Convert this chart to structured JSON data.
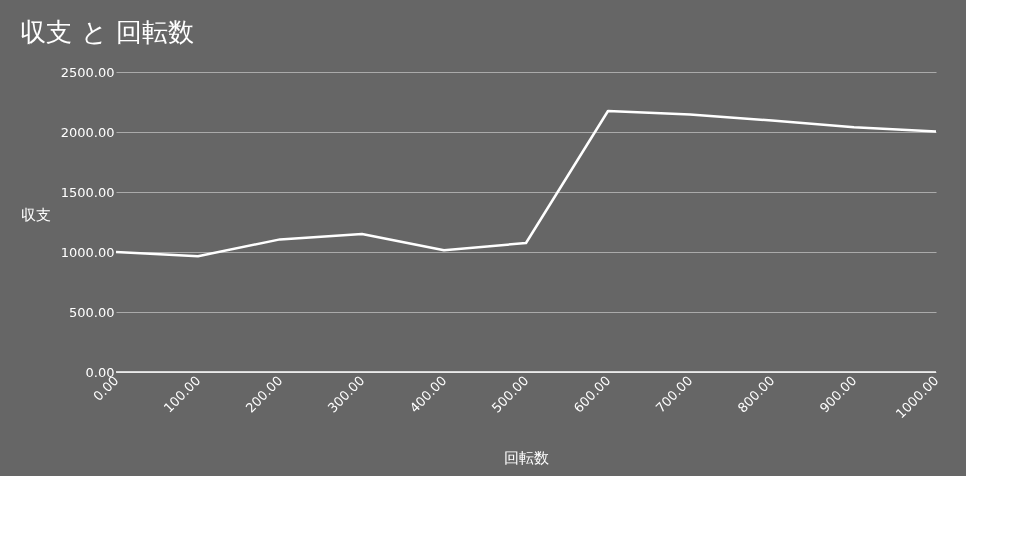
{
  "chart_data": {
    "type": "line",
    "title": "収支 と 回転数",
    "xlabel": "回転数",
    "ylabel": "収支",
    "x": [
      0,
      100,
      200,
      300,
      400,
      500,
      600,
      700,
      800,
      900,
      1000
    ],
    "series": [
      {
        "color": "#ffffff",
        "values": [
          1000,
          965,
          1105,
          1150,
          1015,
          1075,
          2175,
          2145,
          2095,
          2040,
          2005
        ]
      }
    ],
    "xlim": [
      0,
      1000
    ],
    "xticks": [
      {
        "value": 0,
        "label": "0.00"
      },
      {
        "value": 100,
        "label": "100.00"
      },
      {
        "value": 200,
        "label": "200.00"
      },
      {
        "value": 300,
        "label": "300.00"
      },
      {
        "value": 400,
        "label": "400.00"
      },
      {
        "value": 500,
        "label": "500.00"
      },
      {
        "value": 600,
        "label": "600.00"
      },
      {
        "value": 700,
        "label": "700.00"
      },
      {
        "value": 800,
        "label": "800.00"
      },
      {
        "value": 900,
        "label": "900.00"
      },
      {
        "value": 1000,
        "label": "1000.00"
      }
    ],
    "ylim": [
      0,
      2500
    ],
    "yticks": [
      {
        "value": 0,
        "label": "0.00"
      },
      {
        "value": 500,
        "label": "500.00"
      },
      {
        "value": 1000,
        "label": "1000.00"
      },
      {
        "value": 1500,
        "label": "1500.00"
      },
      {
        "value": 2000,
        "label": "2000.00"
      },
      {
        "value": 2500,
        "label": "2500.00"
      }
    ],
    "grid": "y",
    "legend": false,
    "marker": "none",
    "line_style": "solid"
  }
}
